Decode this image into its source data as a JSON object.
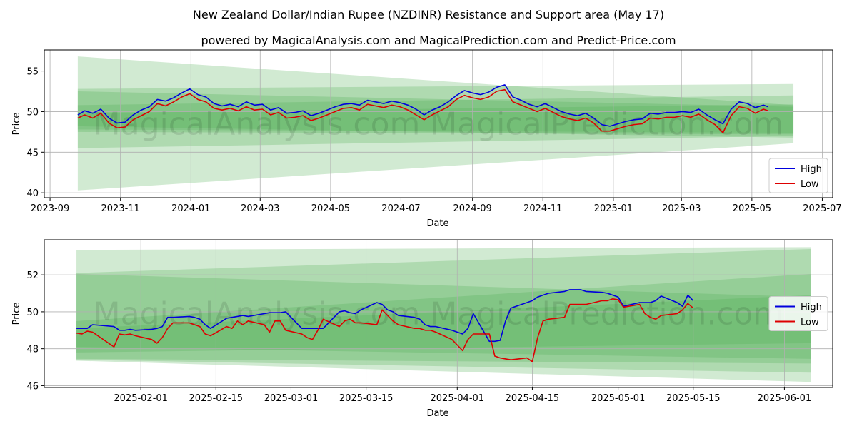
{
  "title": "New Zealand Dollar/Indian Rupee (NZDINR) Resistance and Support area (May 17)",
  "subtitle": "powered by MagicalAnalysis.com and MagicalPrediction.com and Predict-Price.com",
  "watermark": "MagicalAnalysis.com   MagicalPrediction.com",
  "colors": {
    "high": "#0000dd",
    "low": "#dd0000",
    "band": "#4caf50",
    "grid": "#b0b0b0"
  },
  "chart_data": [
    {
      "type": "line",
      "panel": "top",
      "xlabel": "Date",
      "ylabel": "Price",
      "xlim": [
        "2023-08-27",
        "2025-07-10"
      ],
      "ylim": [
        39.4,
        57.6
      ],
      "x_ticks": [
        "2023-09",
        "2023-11",
        "2024-01",
        "2024-03",
        "2024-05",
        "2024-07",
        "2024-09",
        "2024-11",
        "2025-01",
        "2025-03",
        "2025-05",
        "2025-07"
      ],
      "y_ticks": [
        40,
        45,
        50,
        55
      ],
      "grid": true,
      "legend": "lower-right",
      "bands": [
        {
          "x": [
            "2023-09-25",
            "2025-06-06"
          ],
          "upper": [
            56.8,
            50.8
          ],
          "lower": [
            40.3,
            46.1
          ]
        },
        {
          "x": [
            "2023-09-25",
            "2025-06-06"
          ],
          "upper": [
            52.8,
            53.4
          ],
          "lower": [
            45.5,
            47.0
          ]
        },
        {
          "x": [
            "2023-09-25",
            "2025-06-06"
          ],
          "upper": [
            52.5,
            50.6
          ],
          "lower": [
            47.8,
            47.4
          ]
        },
        {
          "x": [
            "2023-09-25",
            "2025-06-06"
          ],
          "upper": [
            50.8,
            52.0
          ],
          "lower": [
            48.2,
            46.8
          ]
        },
        {
          "x": [
            "2023-09-25",
            "2025-06-06"
          ],
          "upper": [
            49.8,
            50.9
          ],
          "lower": [
            47.5,
            47.2
          ]
        }
      ],
      "series": [
        {
          "name": "High",
          "x": [
            "2023-09-25",
            "2023-10-01",
            "2023-10-08",
            "2023-10-15",
            "2023-10-22",
            "2023-10-29",
            "2023-11-05",
            "2023-11-12",
            "2023-11-19",
            "2023-11-26",
            "2023-12-03",
            "2023-12-10",
            "2023-12-17",
            "2023-12-24",
            "2023-12-31",
            "2024-01-07",
            "2024-01-14",
            "2024-01-21",
            "2024-01-28",
            "2024-02-04",
            "2024-02-11",
            "2024-02-18",
            "2024-02-25",
            "2024-03-03",
            "2024-03-10",
            "2024-03-17",
            "2024-03-24",
            "2024-03-31",
            "2024-04-07",
            "2024-04-14",
            "2024-04-21",
            "2024-04-28",
            "2024-05-05",
            "2024-05-12",
            "2024-05-19",
            "2024-05-26",
            "2024-06-02",
            "2024-06-09",
            "2024-06-16",
            "2024-06-23",
            "2024-06-30",
            "2024-07-07",
            "2024-07-14",
            "2024-07-21",
            "2024-07-28",
            "2024-08-04",
            "2024-08-11",
            "2024-08-18",
            "2024-08-25",
            "2024-09-01",
            "2024-09-08",
            "2024-09-15",
            "2024-09-22",
            "2024-09-29",
            "2024-10-06",
            "2024-10-13",
            "2024-10-20",
            "2024-10-27",
            "2024-11-03",
            "2024-11-10",
            "2024-11-17",
            "2024-11-24",
            "2024-12-01",
            "2024-12-08",
            "2024-12-15",
            "2024-12-22",
            "2024-12-29",
            "2025-01-05",
            "2025-01-12",
            "2025-01-19",
            "2025-01-26",
            "2025-02-02",
            "2025-02-09",
            "2025-02-16",
            "2025-02-23",
            "2025-03-02",
            "2025-03-09",
            "2025-03-16",
            "2025-03-23",
            "2025-03-30",
            "2025-04-06",
            "2025-04-13",
            "2025-04-20",
            "2025-04-27",
            "2025-05-04",
            "2025-05-11",
            "2025-05-15"
          ],
          "values": [
            49.6,
            50.1,
            49.8,
            50.3,
            49.2,
            48.6,
            48.7,
            49.6,
            50.2,
            50.6,
            51.5,
            51.3,
            51.7,
            52.3,
            52.8,
            52.1,
            51.8,
            51.0,
            50.7,
            50.9,
            50.6,
            51.2,
            50.8,
            50.9,
            50.2,
            50.5,
            49.8,
            49.9,
            50.1,
            49.5,
            49.8,
            50.2,
            50.6,
            50.9,
            51.0,
            50.8,
            51.4,
            51.2,
            51.0,
            51.3,
            51.1,
            50.8,
            50.3,
            49.6,
            50.2,
            50.6,
            51.2,
            52.0,
            52.6,
            52.3,
            52.1,
            52.4,
            53.0,
            53.3,
            51.8,
            51.4,
            50.9,
            50.6,
            51.0,
            50.5,
            50.0,
            49.7,
            49.5,
            49.8,
            49.2,
            48.4,
            48.2,
            48.5,
            48.8,
            49.0,
            49.1,
            49.8,
            49.7,
            49.9,
            49.9,
            50.0,
            49.9,
            50.3,
            49.6,
            49.0,
            48.5,
            50.3,
            51.2,
            51.0,
            50.5,
            50.8,
            50.6
          ]
        },
        {
          "name": "Low",
          "x": [
            "2023-09-25",
            "2023-10-01",
            "2023-10-08",
            "2023-10-15",
            "2023-10-22",
            "2023-10-29",
            "2023-11-05",
            "2023-11-12",
            "2023-11-19",
            "2023-11-26",
            "2023-12-03",
            "2023-12-10",
            "2023-12-17",
            "2023-12-24",
            "2023-12-31",
            "2024-01-07",
            "2024-01-14",
            "2024-01-21",
            "2024-01-28",
            "2024-02-04",
            "2024-02-11",
            "2024-02-18",
            "2024-02-25",
            "2024-03-03",
            "2024-03-10",
            "2024-03-17",
            "2024-03-24",
            "2024-03-31",
            "2024-04-07",
            "2024-04-14",
            "2024-04-21",
            "2024-04-28",
            "2024-05-05",
            "2024-05-12",
            "2024-05-19",
            "2024-05-26",
            "2024-06-02",
            "2024-06-09",
            "2024-06-16",
            "2024-06-23",
            "2024-06-30",
            "2024-07-07",
            "2024-07-14",
            "2024-07-21",
            "2024-07-28",
            "2024-08-04",
            "2024-08-11",
            "2024-08-18",
            "2024-08-25",
            "2024-09-01",
            "2024-09-08",
            "2024-09-15",
            "2024-09-22",
            "2024-09-29",
            "2024-10-06",
            "2024-10-13",
            "2024-10-20",
            "2024-10-27",
            "2024-11-03",
            "2024-11-10",
            "2024-11-17",
            "2024-11-24",
            "2024-12-01",
            "2024-12-08",
            "2024-12-15",
            "2024-12-22",
            "2024-12-29",
            "2025-01-05",
            "2025-01-12",
            "2025-01-19",
            "2025-01-26",
            "2025-02-02",
            "2025-02-09",
            "2025-02-16",
            "2025-02-23",
            "2025-03-02",
            "2025-03-09",
            "2025-03-16",
            "2025-03-23",
            "2025-03-30",
            "2025-04-06",
            "2025-04-13",
            "2025-04-20",
            "2025-04-27",
            "2025-05-04",
            "2025-05-11",
            "2025-05-15"
          ],
          "values": [
            49.2,
            49.6,
            49.2,
            49.8,
            48.6,
            48.0,
            48.1,
            49.0,
            49.5,
            50.0,
            51.0,
            50.7,
            51.2,
            51.8,
            52.2,
            51.5,
            51.2,
            50.4,
            50.2,
            50.4,
            50.1,
            50.6,
            50.2,
            50.3,
            49.6,
            49.9,
            49.2,
            49.3,
            49.5,
            48.9,
            49.2,
            49.6,
            50.0,
            50.4,
            50.5,
            50.2,
            50.9,
            50.7,
            50.5,
            50.8,
            50.6,
            50.2,
            49.6,
            49.0,
            49.6,
            50.1,
            50.6,
            51.5,
            52.0,
            51.7,
            51.5,
            51.8,
            52.5,
            52.7,
            51.2,
            50.8,
            50.4,
            50.0,
            50.4,
            49.9,
            49.4,
            49.1,
            48.9,
            49.2,
            48.6,
            47.6,
            47.6,
            47.9,
            48.2,
            48.4,
            48.5,
            49.2,
            49.1,
            49.3,
            49.3,
            49.5,
            49.3,
            49.7,
            49.0,
            48.4,
            47.4,
            49.5,
            50.6,
            50.4,
            49.8,
            50.3,
            50.1
          ]
        }
      ]
    },
    {
      "type": "line",
      "panel": "bottom",
      "xlabel": "Date",
      "ylabel": "Price",
      "xlim": [
        "2025-01-14",
        "2025-06-10"
      ],
      "ylim": [
        45.9,
        53.9
      ],
      "x_ticks": [
        "2025-02-01",
        "2025-02-15",
        "2025-03-01",
        "2025-03-15",
        "2025-04-01",
        "2025-04-15",
        "2025-05-01",
        "2025-05-15",
        "2025-06-01"
      ],
      "y_ticks": [
        46,
        48,
        50,
        52
      ],
      "grid": true,
      "legend": "right",
      "bands": [
        {
          "x": [
            "2025-01-20",
            "2025-06-06"
          ],
          "upper": [
            53.35,
            53.5
          ],
          "lower": [
            47.35,
            46.2
          ]
        },
        {
          "x": [
            "2025-01-20",
            "2025-06-06"
          ],
          "upper": [
            52.1,
            53.4
          ],
          "lower": [
            47.4,
            46.7
          ]
        },
        {
          "x": [
            "2025-01-20",
            "2025-06-06"
          ],
          "upper": [
            52.05,
            50.8
          ],
          "lower": [
            47.45,
            47.2
          ]
        },
        {
          "x": [
            "2025-01-20",
            "2025-06-06"
          ],
          "upper": [
            49.5,
            52.05
          ],
          "lower": [
            48.1,
            47.45
          ]
        },
        {
          "x": [
            "2025-01-20",
            "2025-06-06"
          ],
          "upper": [
            49.1,
            50.9
          ],
          "lower": [
            47.8,
            48.3
          ]
        }
      ],
      "series": [
        {
          "name": "High",
          "x": [
            "2025-01-20",
            "2025-01-21",
            "2025-01-22",
            "2025-01-23",
            "2025-01-27",
            "2025-01-28",
            "2025-01-29",
            "2025-01-30",
            "2025-01-31",
            "2025-02-03",
            "2025-02-04",
            "2025-02-05",
            "2025-02-06",
            "2025-02-07",
            "2025-02-10",
            "2025-02-11",
            "2025-02-12",
            "2025-02-13",
            "2025-02-14",
            "2025-02-17",
            "2025-02-18",
            "2025-02-19",
            "2025-02-20",
            "2025-02-21",
            "2025-02-24",
            "2025-02-25",
            "2025-02-26",
            "2025-02-27",
            "2025-02-28",
            "2025-03-03",
            "2025-03-04",
            "2025-03-05",
            "2025-03-06",
            "2025-03-07",
            "2025-03-10",
            "2025-03-11",
            "2025-03-12",
            "2025-03-13",
            "2025-03-14",
            "2025-03-17",
            "2025-03-18",
            "2025-03-19",
            "2025-03-20",
            "2025-03-21",
            "2025-03-24",
            "2025-03-25",
            "2025-03-26",
            "2025-03-27",
            "2025-03-28",
            "2025-03-31",
            "2025-04-01",
            "2025-04-02",
            "2025-04-03",
            "2025-04-04",
            "2025-04-07",
            "2025-04-08",
            "2025-04-09",
            "2025-04-10",
            "2025-04-11",
            "2025-04-14",
            "2025-04-15",
            "2025-04-16",
            "2025-04-17",
            "2025-04-18",
            "2025-04-21",
            "2025-04-22",
            "2025-04-23",
            "2025-04-24",
            "2025-04-25",
            "2025-04-28",
            "2025-04-29",
            "2025-04-30",
            "2025-05-01",
            "2025-05-02",
            "2025-05-05",
            "2025-05-06",
            "2025-05-07",
            "2025-05-08",
            "2025-05-09",
            "2025-05-12",
            "2025-05-13",
            "2025-05-14",
            "2025-05-15"
          ],
          "values": [
            49.1,
            49.1,
            49.1,
            49.3,
            49.2,
            49.0,
            49.0,
            49.05,
            49.0,
            49.05,
            49.1,
            49.2,
            49.7,
            49.7,
            49.75,
            49.7,
            49.6,
            49.3,
            49.1,
            49.65,
            49.7,
            49.75,
            49.8,
            49.75,
            49.9,
            49.95,
            49.95,
            49.95,
            50.0,
            49.1,
            49.1,
            49.1,
            49.1,
            49.1,
            50.0,
            50.05,
            49.95,
            49.9,
            50.1,
            50.5,
            50.4,
            50.1,
            50.0,
            49.8,
            49.7,
            49.6,
            49.3,
            49.2,
            49.2,
            49.0,
            48.9,
            48.8,
            49.1,
            49.9,
            48.4,
            48.4,
            48.45,
            49.5,
            50.2,
            50.5,
            50.6,
            50.8,
            50.9,
            51.0,
            51.1,
            51.2,
            51.2,
            51.2,
            51.1,
            51.05,
            51.0,
            50.9,
            50.8,
            50.3,
            50.5,
            50.5,
            50.5,
            50.6,
            50.85,
            50.5,
            50.3,
            50.9,
            50.6
          ]
        },
        {
          "name": "Low",
          "x": [
            "2025-01-20",
            "2025-01-21",
            "2025-01-22",
            "2025-01-23",
            "2025-01-27",
            "2025-01-28",
            "2025-01-29",
            "2025-01-30",
            "2025-01-31",
            "2025-02-03",
            "2025-02-04",
            "2025-02-05",
            "2025-02-06",
            "2025-02-07",
            "2025-02-10",
            "2025-02-11",
            "2025-02-12",
            "2025-02-13",
            "2025-02-14",
            "2025-02-17",
            "2025-02-18",
            "2025-02-19",
            "2025-02-20",
            "2025-02-21",
            "2025-02-24",
            "2025-02-25",
            "2025-02-26",
            "2025-02-27",
            "2025-02-28",
            "2025-03-03",
            "2025-03-04",
            "2025-03-05",
            "2025-03-06",
            "2025-03-07",
            "2025-03-10",
            "2025-03-11",
            "2025-03-12",
            "2025-03-13",
            "2025-03-14",
            "2025-03-17",
            "2025-03-18",
            "2025-03-19",
            "2025-03-20",
            "2025-03-21",
            "2025-03-24",
            "2025-03-25",
            "2025-03-26",
            "2025-03-27",
            "2025-03-28",
            "2025-03-31",
            "2025-04-01",
            "2025-04-02",
            "2025-04-03",
            "2025-04-04",
            "2025-04-07",
            "2025-04-08",
            "2025-04-09",
            "2025-04-10",
            "2025-04-11",
            "2025-04-14",
            "2025-04-15",
            "2025-04-16",
            "2025-04-17",
            "2025-04-18",
            "2025-04-21",
            "2025-04-22",
            "2025-04-23",
            "2025-04-24",
            "2025-04-25",
            "2025-04-28",
            "2025-04-29",
            "2025-04-30",
            "2025-05-01",
            "2025-05-02",
            "2025-05-05",
            "2025-05-06",
            "2025-05-07",
            "2025-05-08",
            "2025-05-09",
            "2025-05-12",
            "2025-05-13",
            "2025-05-14",
            "2025-05-15"
          ],
          "values": [
            48.85,
            48.8,
            48.95,
            48.9,
            48.1,
            48.8,
            48.75,
            48.8,
            48.7,
            48.5,
            48.3,
            48.6,
            49.1,
            49.4,
            49.4,
            49.3,
            49.2,
            48.8,
            48.7,
            49.2,
            49.1,
            49.5,
            49.3,
            49.5,
            49.3,
            48.9,
            49.5,
            49.5,
            49.0,
            48.8,
            48.6,
            48.5,
            49.0,
            49.6,
            49.2,
            49.5,
            49.6,
            49.4,
            49.4,
            49.3,
            50.1,
            49.8,
            49.5,
            49.3,
            49.1,
            49.1,
            49.0,
            49.0,
            48.9,
            48.5,
            48.2,
            47.9,
            48.5,
            48.8,
            48.8,
            47.6,
            47.5,
            47.45,
            47.4,
            47.5,
            47.3,
            48.6,
            49.5,
            49.6,
            49.7,
            50.4,
            50.4,
            50.4,
            50.4,
            50.6,
            50.6,
            50.7,
            50.65,
            50.25,
            50.4,
            49.9,
            49.7,
            49.6,
            49.8,
            49.9,
            50.1,
            50.45,
            50.2
          ]
        }
      ]
    }
  ]
}
